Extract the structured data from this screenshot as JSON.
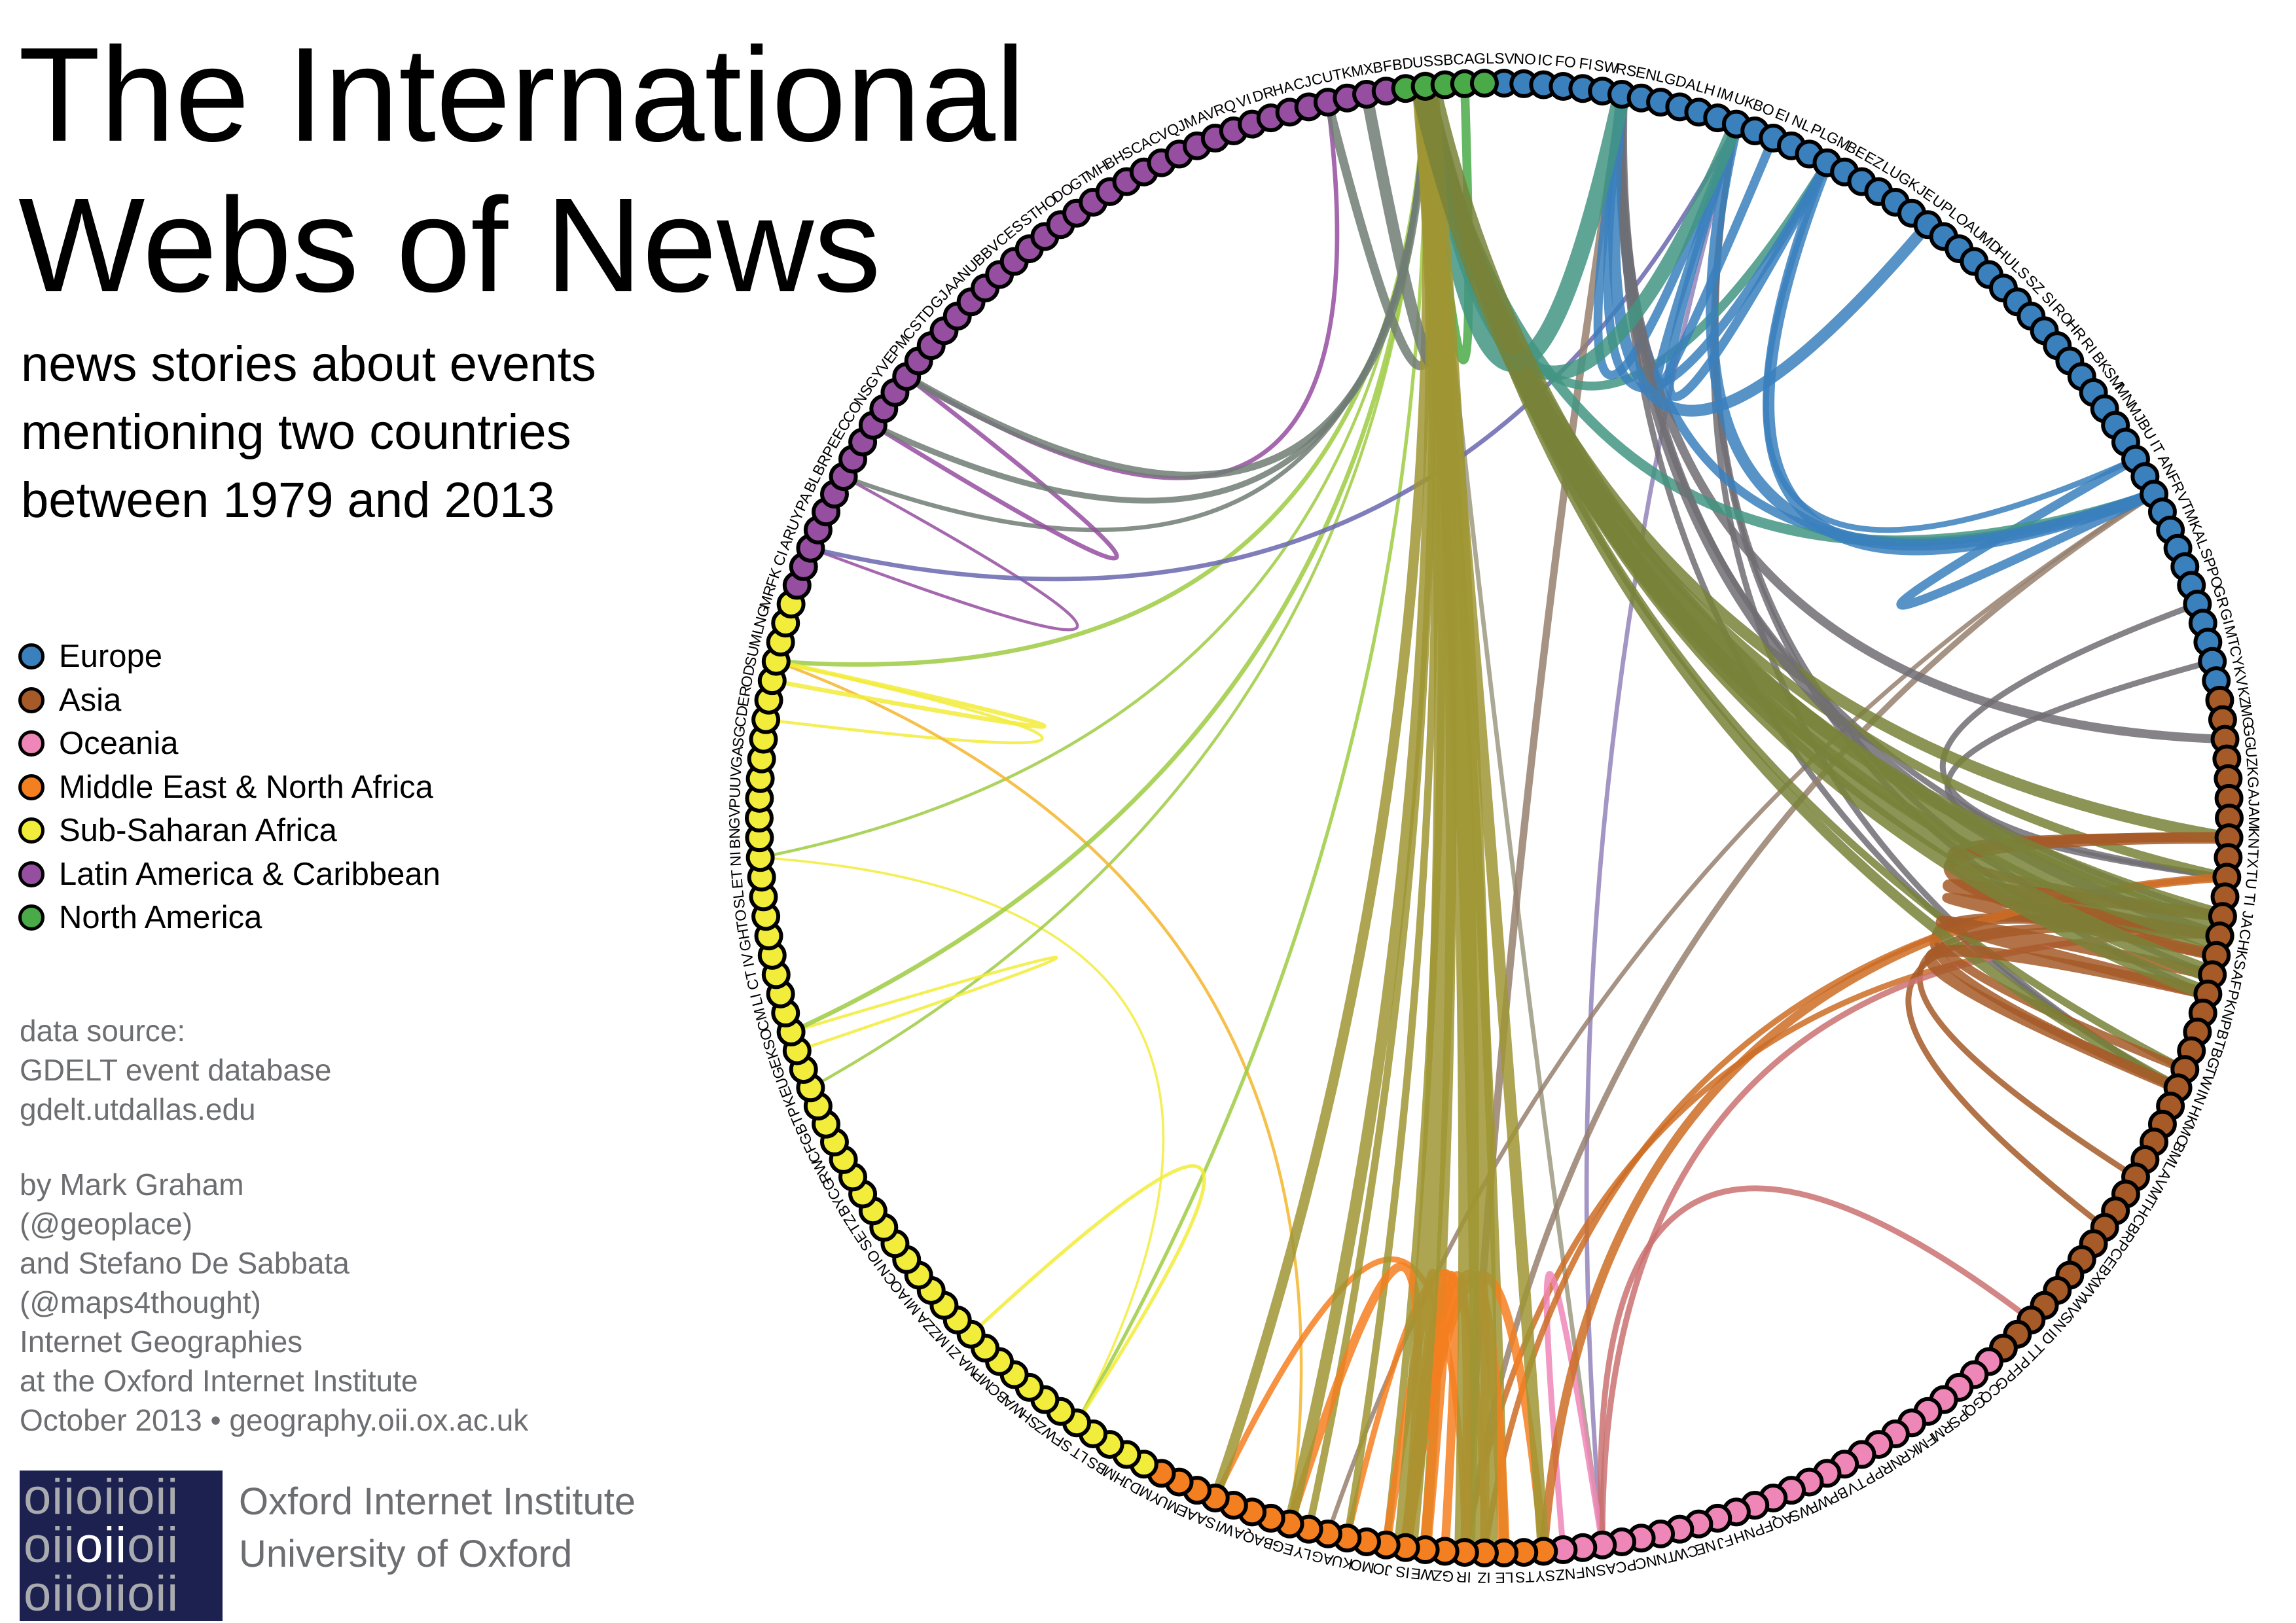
{
  "title": [
    "The International",
    "Webs of News"
  ],
  "subtitle": [
    "news stories about events",
    "mentioning two countries",
    "between 1979 and 2013"
  ],
  "legend": [
    {
      "label": "Europe",
      "color": "#3a80bd"
    },
    {
      "label": "Asia",
      "color": "#a65a28"
    },
    {
      "label": "Oceania",
      "color": "#ee87b7"
    },
    {
      "label": "Middle East & North Africa",
      "color": "#f47f20"
    },
    {
      "label": "Sub-Saharan Africa",
      "color": "#f2ec3a"
    },
    {
      "label": "Latin America & Caribbean",
      "color": "#954ea0"
    },
    {
      "label": "North America",
      "color": "#4aaa48"
    }
  ],
  "source": [
    "data source:",
    "GDELT event database",
    "gdelt.utdallas.edu"
  ],
  "credits": [
    "by Mark Graham",
    "(@geoplace)",
    "and Stefano De Sabbata",
    "(@maps4thought)",
    "Internet Geographies",
    "at the Oxford Internet Institute",
    "October 2013 • geography.oii.ox.ac.uk"
  ],
  "logo": {
    "lettering": [
      "oiioiioii",
      "oiioiioii",
      "oiioiioii"
    ],
    "lines": [
      "Oxford Internet Institute",
      "University of Oxford"
    ]
  },
  "chart_data": {
    "type": "chord",
    "regions": [
      {
        "name": "Europe",
        "color": "#3a80bd",
        "codes": [
          "SV",
          "NO",
          "IC",
          "FO",
          "FI",
          "SW",
          "RS",
          "EN",
          "LG",
          "DA",
          "LH",
          "IM",
          "UK",
          "BO",
          "EI",
          "NL",
          "PL",
          "GM",
          "BE",
          "EZ",
          "LU",
          "GK",
          "JE",
          "UP",
          "LO",
          "AU",
          "MD",
          "HU",
          "LS",
          "SZ",
          "SI",
          "RO",
          "HR",
          "RI",
          "BK",
          "SM",
          "MN",
          "MJ",
          "BU",
          "IT",
          "AN",
          "FR",
          "VT",
          "MK",
          "AL",
          "SP",
          "PO",
          "GR",
          "GI",
          "MT",
          "CY",
          "KV"
        ]
      },
      {
        "name": "Asia",
        "color": "#a65a28",
        "codes": [
          "KZ",
          "MG",
          "GG",
          "UZ",
          "KG",
          "AJ",
          "AM",
          "KN",
          "TX",
          "TU",
          "TI",
          "JA",
          "CH",
          "KS",
          "AF",
          "PK",
          "NP",
          "BT",
          "BG",
          "TW",
          "IN",
          "HK",
          "MC",
          "BM",
          "LA",
          "VM",
          "TH",
          "CB",
          "RP",
          "CE",
          "BX",
          "MY",
          "MV",
          "SN",
          "ID",
          "TT",
          "PF"
        ]
      },
      {
        "name": "Oceania",
        "color": "#ee87b7",
        "codes": [
          "PG",
          "CQ",
          "GQ",
          "PS",
          "RM",
          "FM",
          "KR",
          "NR",
          "PP",
          "TV",
          "BP",
          "WF",
          "WS",
          "AQ",
          "FP",
          "NH",
          "FJ",
          "NE",
          "CW",
          "TN",
          "NC",
          "PC",
          "AS",
          "NF",
          "NZ"
        ]
      },
      {
        "name": "Middle East & North Africa",
        "color": "#f47f20",
        "codes": [
          "SY",
          "TS",
          "LE",
          "IZ",
          "IR",
          "GZ",
          "WE",
          "IS",
          "JO",
          "MO",
          "KU",
          "AG",
          "LY",
          "EG",
          "BA",
          "QA",
          "WI",
          "SA",
          "AE",
          "MU",
          "YM"
        ]
      },
      {
        "name": "Sub-Saharan Africa",
        "color": "#f2ec3a",
        "codes": [
          "DJ",
          "HM",
          "BS",
          "LT",
          "SF",
          "WZ",
          "SH",
          "WA",
          "BC",
          "MP",
          "MA",
          "ZI",
          "MZ",
          "ZA",
          "MI",
          "AO",
          "CN",
          "IO",
          "SE",
          "TZ",
          "BY",
          "CG",
          "RW",
          "CF",
          "GB",
          "TP",
          "KE",
          "UG",
          "EK",
          "SO",
          "CM",
          "LI",
          "CT",
          "IV",
          "GH",
          "TO",
          "SL",
          "ET",
          "NI",
          "BN",
          "GV",
          "PU",
          "UV",
          "GA",
          "SG",
          "CD",
          "ER",
          "OD",
          "SU",
          "ML",
          "NG",
          "MR"
        ]
      },
      {
        "name": "Latin America & Caribbean",
        "color": "#954ea0",
        "codes": [
          "FK",
          "CI",
          "AR",
          "UY",
          "PA",
          "BL",
          "BR",
          "PE",
          "EC",
          "CO",
          "NS",
          "GY",
          "VE",
          "PM",
          "CS",
          "TD",
          "GJ",
          "AA",
          "NU",
          "BB",
          "VC",
          "ES",
          "ST",
          "HO",
          "DO",
          "GT",
          "MH",
          "BH",
          "SC",
          "AC",
          "VQ",
          "JM",
          "AV",
          "RQ",
          "VI",
          "DR",
          "HA",
          "CJ",
          "CU",
          "TK",
          "MX",
          "BF"
        ]
      },
      {
        "name": "North America",
        "color": "#4aaa48",
        "codes": [
          "BD",
          "US",
          "SB",
          "CA",
          "GL"
        ]
      }
    ],
    "edges": [
      {
        "from": "US",
        "to": "CH",
        "weight": 10
      },
      {
        "from": "US",
        "to": "IZ",
        "weight": 9
      },
      {
        "from": "US",
        "to": "IR",
        "weight": 7
      },
      {
        "from": "US",
        "to": "IS",
        "weight": 8
      },
      {
        "from": "US",
        "to": "AF",
        "weight": 6
      },
      {
        "from": "US",
        "to": "PK",
        "weight": 5
      },
      {
        "from": "US",
        "to": "RS",
        "weight": 6
      },
      {
        "from": "US",
        "to": "UK",
        "weight": 5
      },
      {
        "from": "US",
        "to": "JA",
        "weight": 5
      },
      {
        "from": "US",
        "to": "KN",
        "weight": 4
      },
      {
        "from": "US",
        "to": "KS",
        "weight": 4
      },
      {
        "from": "US",
        "to": "MX",
        "weight": 4
      },
      {
        "from": "US",
        "to": "CA",
        "weight": 3
      },
      {
        "from": "US",
        "to": "CU",
        "weight": 3
      },
      {
        "from": "US",
        "to": "VE",
        "weight": 2.5
      },
      {
        "from": "US",
        "to": "SY",
        "weight": 4
      },
      {
        "from": "US",
        "to": "EG",
        "weight": 4
      },
      {
        "from": "US",
        "to": "LE",
        "weight": 3
      },
      {
        "from": "US",
        "to": "SA",
        "weight": 3.5
      },
      {
        "from": "US",
        "to": "FR",
        "weight": 3.5
      },
      {
        "from": "US",
        "to": "GM",
        "weight": 3
      },
      {
        "from": "US",
        "to": "IN",
        "weight": 3.5
      },
      {
        "from": "US",
        "to": "TW",
        "weight": 2.5
      },
      {
        "from": "US",
        "to": "TU",
        "weight": 3
      },
      {
        "from": "US",
        "to": "WE",
        "weight": 3.5
      },
      {
        "from": "US",
        "to": "JO",
        "weight": 2.5
      },
      {
        "from": "US",
        "to": "LY",
        "weight": 2.5
      },
      {
        "from": "US",
        "to": "KU",
        "weight": 2.5
      },
      {
        "from": "US",
        "to": "SO",
        "weight": 1.5
      },
      {
        "from": "US",
        "to": "SU",
        "weight": 1.5
      },
      {
        "from": "US",
        "to": "CO",
        "weight": 2
      },
      {
        "from": "US",
        "to": "BR",
        "weight": 1.5
      },
      {
        "from": "US",
        "to": "NI",
        "weight": 1
      },
      {
        "from": "US",
        "to": "SF",
        "weight": 1.2
      },
      {
        "from": "US",
        "to": "KE",
        "weight": 1
      },
      {
        "from": "US",
        "to": "AS",
        "weight": 1.5
      },
      {
        "from": "UK",
        "to": "FR",
        "weight": 4
      },
      {
        "from": "UK",
        "to": "GM",
        "weight": 3
      },
      {
        "from": "FR",
        "to": "GM",
        "weight": 4
      },
      {
        "from": "RS",
        "to": "UK",
        "weight": 3
      },
      {
        "from": "RS",
        "to": "GM",
        "weight": 3
      },
      {
        "from": "RS",
        "to": "FR",
        "weight": 3
      },
      {
        "from": "RS",
        "to": "CH",
        "weight": 4
      },
      {
        "from": "RS",
        "to": "UP",
        "weight": 4
      },
      {
        "from": "RS",
        "to": "GG",
        "weight": 3
      },
      {
        "from": "RS",
        "to": "JA",
        "weight": 2
      },
      {
        "from": "RS",
        "to": "IR",
        "weight": 2.5
      },
      {
        "from": "RS",
        "to": "IN",
        "weight": 2
      },
      {
        "from": "FR",
        "to": "IT",
        "weight": 3
      },
      {
        "from": "GM",
        "to": "IT",
        "weight": 2
      },
      {
        "from": "UK",
        "to": "EI",
        "weight": 3
      },
      {
        "from": "UK",
        "to": "IN",
        "weight": 2
      },
      {
        "from": "UK",
        "to": "AF",
        "weight": 2
      },
      {
        "from": "UK",
        "to": "PK",
        "weight": 2
      },
      {
        "from": "UK",
        "to": "AS",
        "weight": 1.5
      },
      {
        "from": "FR",
        "to": "IR",
        "weight": 2
      },
      {
        "from": "FR",
        "to": "AG",
        "weight": 1.5
      },
      {
        "from": "GR",
        "to": "TU",
        "weight": 2
      },
      {
        "from": "CY",
        "to": "TU",
        "weight": 2
      },
      {
        "from": "UK",
        "to": "AR",
        "weight": 1.5
      },
      {
        "from": "CH",
        "to": "JA",
        "weight": 4
      },
      {
        "from": "CH",
        "to": "KS",
        "weight": 3
      },
      {
        "from": "KN",
        "to": "KS",
        "weight": 4
      },
      {
        "from": "CH",
        "to": "TW",
        "weight": 3
      },
      {
        "from": "IN",
        "to": "PK",
        "weight": 4
      },
      {
        "from": "AF",
        "to": "PK",
        "weight": 4
      },
      {
        "from": "CH",
        "to": "IN",
        "weight": 3
      },
      {
        "from": "CH",
        "to": "KN",
        "weight": 3
      },
      {
        "from": "JA",
        "to": "KN",
        "weight": 3
      },
      {
        "from": "CH",
        "to": "IR",
        "weight": 2
      },
      {
        "from": "CH",
        "to": "VM",
        "weight": 2
      },
      {
        "from": "CH",
        "to": "RP",
        "weight": 2
      },
      {
        "from": "ID",
        "to": "AS",
        "weight": 2
      },
      {
        "from": "AS",
        "to": "NZ",
        "weight": 2
      },
      {
        "from": "AS",
        "to": "CH",
        "weight": 2
      },
      {
        "from": "IS",
        "to": "WE",
        "weight": 4
      },
      {
        "from": "IS",
        "to": "LE",
        "weight": 4
      },
      {
        "from": "IS",
        "to": "SY",
        "weight": 3
      },
      {
        "from": "IS",
        "to": "EG",
        "weight": 3
      },
      {
        "from": "IR",
        "to": "IZ",
        "weight": 3
      },
      {
        "from": "IZ",
        "to": "KU",
        "weight": 2
      },
      {
        "from": "SA",
        "to": "IR",
        "weight": 2
      },
      {
        "from": "IS",
        "to": "GZ",
        "weight": 3
      },
      {
        "from": "IS",
        "to": "JO",
        "weight": 3
      },
      {
        "from": "TU",
        "to": "SY",
        "weight": 3
      },
      {
        "from": "TU",
        "to": "IZ",
        "weight": 2
      },
      {
        "from": "IS",
        "to": "IR",
        "weight": 3
      },
      {
        "from": "CU",
        "to": "VE",
        "weight": 1.5
      },
      {
        "from": "CO",
        "to": "VE",
        "weight": 1.5
      },
      {
        "from": "BR",
        "to": "AR",
        "weight": 1
      },
      {
        "from": "SU",
        "to": "OD",
        "weight": 1.5
      },
      {
        "from": "SF",
        "to": "ZI",
        "weight": 1.2
      },
      {
        "from": "SO",
        "to": "EK",
        "weight": 1
      },
      {
        "from": "SU",
        "to": "CD",
        "weight": 1
      },
      {
        "from": "SU",
        "to": "EG",
        "weight": 1
      },
      {
        "from": "NI",
        "to": "SF",
        "weight": 0.8
      }
    ]
  }
}
